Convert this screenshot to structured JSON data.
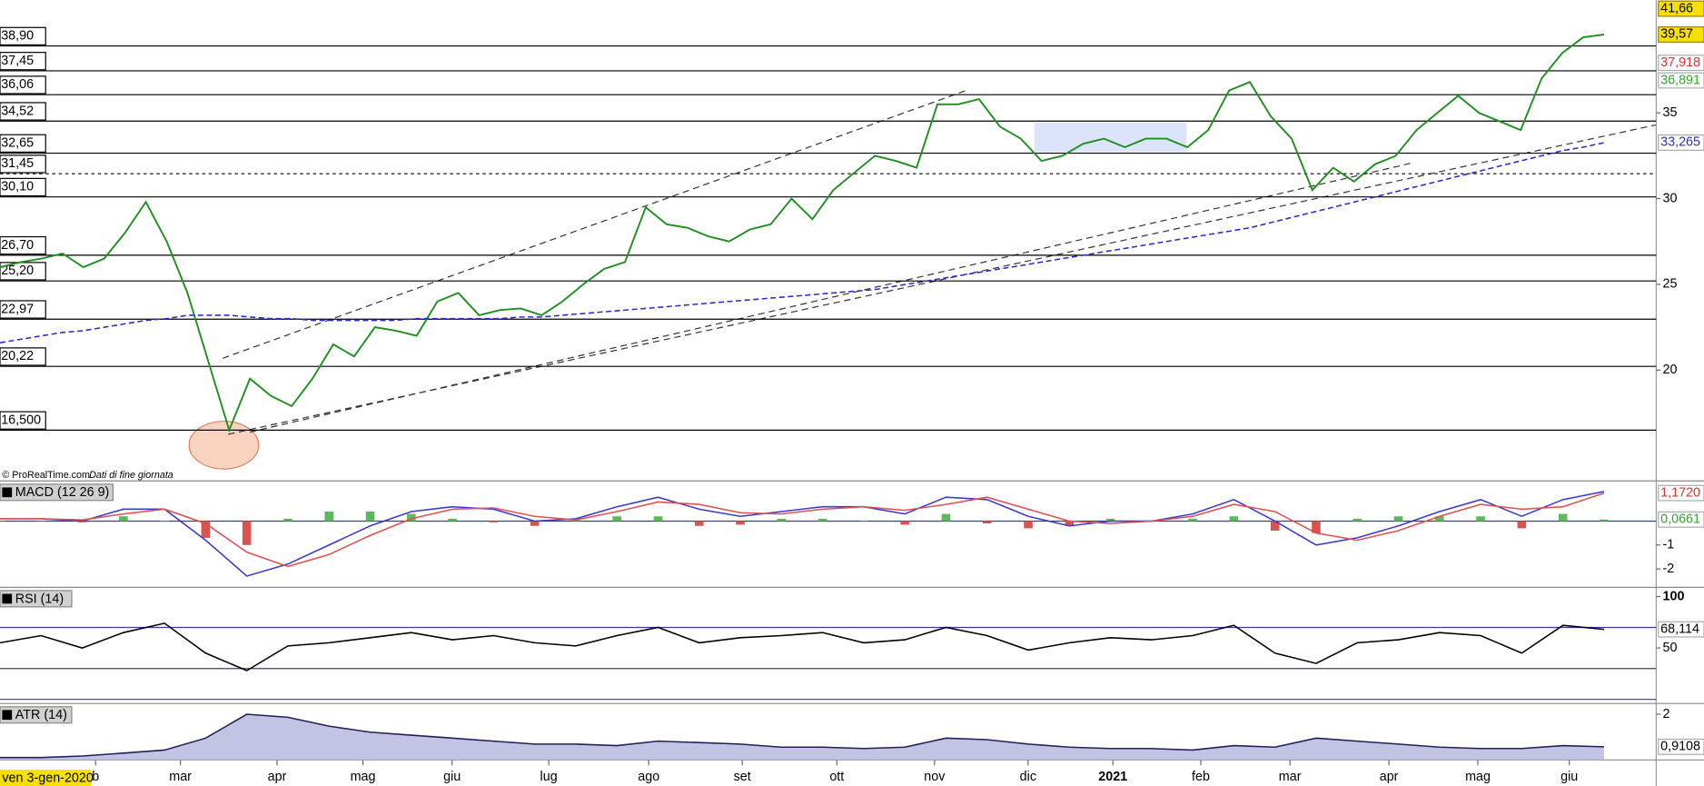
{
  "chart_data": [
    {
      "type": "line",
      "date_label": "ven 3-gen-2020",
      "source": "© ProRealTime.com",
      "note": "Dati di fine giornata",
      "xlim": [
        0,
        79.5
      ],
      "xticks": [
        {
          "value": 4.59,
          "label": "b"
        },
        {
          "value": 8.66,
          "label": "mar"
        },
        {
          "value": 13.3,
          "label": "apr"
        },
        {
          "value": 17.42,
          "label": "mag"
        },
        {
          "value": 21.7,
          "label": "giu"
        },
        {
          "value": 26.34,
          "label": "lug"
        },
        {
          "value": 31.14,
          "label": "ago"
        },
        {
          "value": 35.63,
          "label": "set"
        },
        {
          "value": 40.17,
          "label": "ott"
        },
        {
          "value": 44.86,
          "label": "nov"
        },
        {
          "value": 49.35,
          "label": "dic"
        },
        {
          "value": 53.42,
          "label": "2021"
        },
        {
          "value": 57.64,
          "label": "feb"
        },
        {
          "value": 61.92,
          "label": "mar"
        },
        {
          "value": 66.67,
          "label": "apr"
        },
        {
          "value": 70.94,
          "label": "mag"
        },
        {
          "value": 75.33,
          "label": "giu"
        }
      ],
      "ylim": [
        13.54,
        41.58
      ],
      "yticks": [
        20,
        25,
        30,
        35
      ],
      "levels": [
        {
          "value": 38.9,
          "label": "38,90"
        },
        {
          "value": 37.45,
          "label": "37,45"
        },
        {
          "value": 36.06,
          "label": "36,06"
        },
        {
          "value": 34.52,
          "label": "34,52"
        },
        {
          "value": 32.65,
          "label": "32,65"
        },
        {
          "value": 31.45,
          "label": "31,45",
          "dash": true
        },
        {
          "value": 30.1,
          "label": "30,10"
        },
        {
          "value": 26.7,
          "label": "26,70"
        },
        {
          "value": 25.2,
          "label": "25,20"
        },
        {
          "value": 22.97,
          "label": "22,97"
        },
        {
          "value": 20.22,
          "label": "20,22"
        },
        {
          "value": 16.5,
          "label": "16,500"
        }
      ],
      "markers": [
        {
          "value": 41.66,
          "label": "41,66",
          "color": "#f5e000",
          "box": true
        },
        {
          "value": 39.57,
          "label": "39,57",
          "color": "#f5e000",
          "box": true
        },
        {
          "value": 37.918,
          "label": "37,918",
          "color": "#e03030"
        },
        {
          "value": 36.891,
          "label": "36,891",
          "color": "#2fa82f"
        },
        {
          "value": 33.265,
          "label": "33,265",
          "color": "#3030c0"
        }
      ],
      "series": [
        {
          "color": "#1f8f1f",
          "values": [
            26,
            26.3,
            26.5,
            26.8,
            26,
            26.5,
            28,
            29.8,
            27.5,
            24.5,
            20.5,
            16.5,
            19.5,
            18.5,
            17.9,
            19.5,
            21.5,
            20.8,
            22.5,
            22.3,
            22,
            24,
            24.5,
            23.2,
            23.5,
            23.6,
            23.2,
            24,
            25,
            25.9,
            26.3,
            29.5,
            28.5,
            28.3,
            27.8,
            27.5,
            28.2,
            28.5,
            30,
            28.8,
            30.5,
            31.5,
            32.5,
            32.2,
            31.8,
            35.5,
            35.5,
            35.8,
            34.2,
            33.5,
            32.2,
            32.5,
            33.2,
            33.5,
            33,
            33.5,
            33.5,
            33,
            34,
            36.3,
            36.8,
            34.8,
            33.5,
            30.5,
            31.8,
            31,
            32,
            32.5,
            34,
            35,
            36,
            35,
            34.5,
            34,
            37,
            38.5,
            39.4,
            39.57
          ]
        },
        {
          "color": "#2a2ad0",
          "dash": true,
          "values": [
            21.6,
            21.8,
            22,
            22.2,
            22.3,
            22.5,
            22.7,
            22.9,
            23,
            23.2,
            23.2,
            23.2,
            23.1,
            23,
            23,
            22.9,
            22.9,
            22.9,
            22.9,
            22.9,
            23,
            23,
            23,
            23,
            23,
            23.1,
            23.1,
            23.2,
            23.3,
            23.4,
            23.5,
            23.6,
            23.7,
            23.8,
            23.9,
            24,
            24.1,
            24.2,
            24.3,
            24.4,
            24.5,
            24.6,
            24.7,
            24.9,
            25.1,
            25.3,
            25.5,
            25.7,
            25.9,
            26.1,
            26.3,
            26.5,
            26.7,
            26.9,
            27.1,
            27.3,
            27.5,
            27.7,
            27.9,
            28.1,
            28.3,
            28.6,
            28.9,
            29.2,
            29.5,
            29.8,
            30.1,
            30.4,
            30.7,
            31,
            31.3,
            31.6,
            31.9,
            32.2,
            32.5,
            32.8,
            33,
            33.265
          ]
        }
      ]
    },
    {
      "type": "line",
      "title": "MACD (12 26 9)",
      "ylim": [
        -2.77,
        1.68
      ],
      "yticks": [
        -1,
        -2
      ],
      "markers": [
        {
          "value": 1.172,
          "label": "1,1720",
          "color": "#e03030"
        },
        {
          "value": 0.0661,
          "label": "0,0661",
          "color": "#2fa82f"
        }
      ],
      "series": [
        {
          "type": "bar",
          "color": "#5cb85c",
          "negative_color": "#d9534f",
          "values": [
            0,
            0,
            -0.05,
            0.2,
            0,
            -0.7,
            -1,
            0.1,
            0.4,
            0.4,
            0.3,
            0.1,
            -0.05,
            -0.2,
            0.05,
            0.2,
            0.2,
            -0.2,
            -0.15,
            0.1,
            0.1,
            0,
            -0.15,
            0.3,
            -0.1,
            -0.3,
            -0.2,
            0.1,
            0,
            0.1,
            0.2,
            -0.4,
            -0.5,
            0.1,
            0.2,
            0.2,
            0.2,
            -0.3,
            0.3,
            0.0661
          ]
        },
        {
          "color": "#3a3ad0",
          "values": [
            0.1,
            0.1,
            0,
            0.5,
            0.5,
            -0.8,
            -2.3,
            -1.8,
            -1,
            -0.2,
            0.4,
            0.6,
            0.5,
            0,
            0.1,
            0.6,
            1,
            0.5,
            0.2,
            0.4,
            0.6,
            0.6,
            0.3,
            1,
            0.9,
            0.2,
            -0.2,
            0,
            0,
            0.3,
            0.9,
            0,
            -1,
            -0.7,
            -0.2,
            0.4,
            0.9,
            0.2,
            0.9,
            1.238
          ]
        },
        {
          "color": "#e05050",
          "values": [
            0.1,
            0.1,
            0.05,
            0.3,
            0.5,
            -0.1,
            -1.3,
            -1.9,
            -1.4,
            -0.6,
            0.1,
            0.5,
            0.55,
            0.2,
            0.05,
            0.4,
            0.8,
            0.7,
            0.35,
            0.3,
            0.5,
            0.6,
            0.45,
            0.7,
            1,
            0.5,
            0,
            -0.1,
            0,
            0.2,
            0.7,
            0.4,
            -0.5,
            -0.8,
            -0.4,
            0.2,
            0.7,
            0.5,
            0.6,
            1.172
          ]
        }
      ]
    },
    {
      "type": "line",
      "title": "RSI (14)",
      "ylim": [
        -4,
        109
      ],
      "yticks": [
        50,
        100
      ],
      "levels": [
        {
          "value": 70
        },
        {
          "value": 30
        }
      ],
      "markers": [
        {
          "value": 68.114,
          "label": "68,114",
          "color": "#000000"
        }
      ],
      "series": [
        {
          "color": "#000000",
          "values": [
            55,
            62,
            50,
            65,
            74,
            45,
            28,
            52,
            55,
            60,
            65,
            58,
            62,
            55,
            52,
            62,
            70,
            55,
            60,
            62,
            65,
            55,
            58,
            70,
            62,
            48,
            55,
            60,
            58,
            62,
            72,
            45,
            35,
            55,
            58,
            65,
            62,
            45,
            72,
            68.114
          ]
        }
      ]
    },
    {
      "type": "area",
      "title": "ATR (14)",
      "ylim": [
        0.47,
        2.36
      ],
      "yticks": [
        2
      ],
      "markers": [
        {
          "value": 0.9108,
          "label": "0,9108",
          "color": "#000000"
        }
      ],
      "series": [
        {
          "color": "#20205a",
          "fill": "#b4b4dc",
          "values": [
            0.55,
            0.55,
            0.6,
            0.7,
            0.8,
            1.2,
            2,
            1.9,
            1.6,
            1.4,
            1.3,
            1.2,
            1.1,
            1,
            1,
            0.95,
            1.1,
            1.05,
            1,
            0.9,
            0.9,
            0.85,
            0.9,
            1.2,
            1.15,
            1,
            0.9,
            0.85,
            0.85,
            0.8,
            0.95,
            0.9,
            1.2,
            1.1,
            1,
            0.9,
            0.85,
            0.85,
            0.95,
            0.9108
          ]
        }
      ]
    }
  ]
}
